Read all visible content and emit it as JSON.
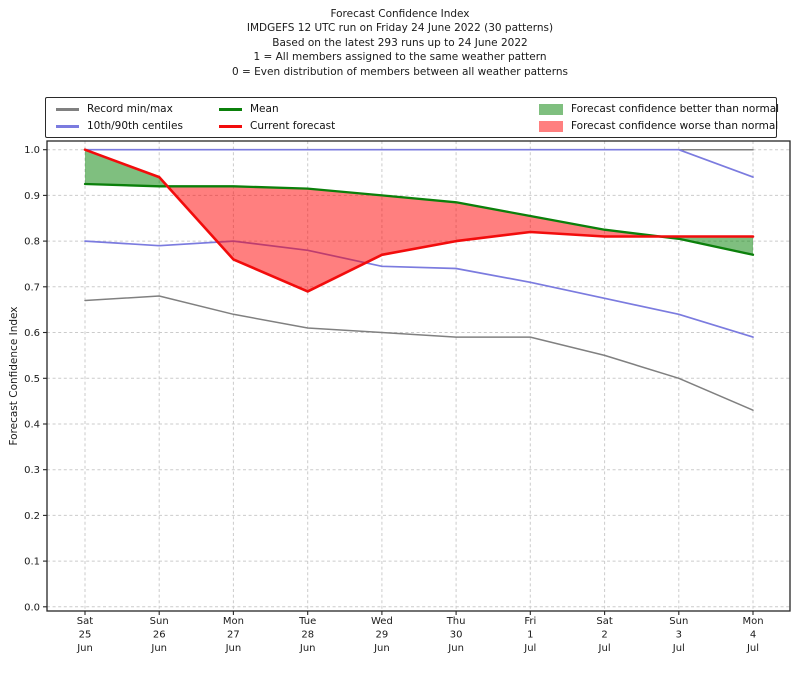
{
  "titles": [
    "Forecast Confidence Index",
    "IMDGEFS 12 UTC run on Friday 24 June 2022 (30 patterns)",
    "Based on the latest 293 runs up to 24 June 2022",
    "1 = All members assigned to the same weather pattern",
    "0 = Even distribution of members between all weather patterns"
  ],
  "ylabel": "Forecast Confidence Index",
  "legend": {
    "items": [
      {
        "label": "Record min/max",
        "type": "line",
        "color": "#808080",
        "opacity": 1
      },
      {
        "label": "10th/90th centiles",
        "type": "line",
        "color": "#7b7bdf",
        "opacity": 1
      },
      {
        "label": "Mean",
        "type": "line",
        "color": "#0b800b",
        "opacity": 1
      },
      {
        "label": "Current forecast",
        "type": "line",
        "color": "#f20c0c",
        "opacity": 1
      },
      {
        "label": "Forecast confidence better than normal",
        "type": "patch",
        "color": "#008000",
        "opacity": 0.5
      },
      {
        "label": "Forecast confidence worse than normal",
        "type": "patch",
        "color": "#ff0000",
        "opacity": 0.5
      }
    ]
  },
  "chart_data": {
    "type": "line",
    "title": "Forecast Confidence Index",
    "ylabel": "Forecast Confidence Index",
    "ylim": [
      0.0,
      1.02
    ],
    "grid": true,
    "legend_position": "top",
    "y_ticks": [
      "0.0",
      "0.1",
      "0.2",
      "0.3",
      "0.4",
      "0.5",
      "0.6",
      "0.7",
      "0.8",
      "0.9",
      "1.0"
    ],
    "x_categories": [
      {
        "dow": "Sat",
        "day": "25",
        "mon": "Jun"
      },
      {
        "dow": "Sun",
        "day": "26",
        "mon": "Jun"
      },
      {
        "dow": "Mon",
        "day": "27",
        "mon": "Jun"
      },
      {
        "dow": "Tue",
        "day": "28",
        "mon": "Jun"
      },
      {
        "dow": "Wed",
        "day": "29",
        "mon": "Jun"
      },
      {
        "dow": "Thu",
        "day": "30",
        "mon": "Jun"
      },
      {
        "dow": "Fri",
        "day": "1",
        "mon": "Jul"
      },
      {
        "dow": "Sat",
        "day": "2",
        "mon": "Jul"
      },
      {
        "dow": "Sun",
        "day": "3",
        "mon": "Jul"
      },
      {
        "dow": "Mon",
        "day": "4",
        "mon": "Jul"
      }
    ],
    "series": [
      {
        "name": "Record max",
        "color": "#808080",
        "line_width": 1.5,
        "z": 1,
        "values": [
          1.0,
          1.0,
          1.0,
          1.0,
          1.0,
          1.0,
          1.0,
          1.0,
          1.0,
          1.0
        ]
      },
      {
        "name": "Record min",
        "color": "#808080",
        "line_width": 1.5,
        "z": 1,
        "values": [
          0.67,
          0.68,
          0.64,
          0.61,
          0.6,
          0.59,
          0.59,
          0.55,
          0.5,
          0.43
        ]
      },
      {
        "name": "90th centile",
        "color": "#7b7bdf",
        "line_width": 1.7,
        "z": 1,
        "values": [
          1.0,
          1.0,
          1.0,
          1.0,
          1.0,
          1.0,
          1.0,
          1.0,
          1.0,
          0.94
        ]
      },
      {
        "name": "10th centile",
        "color": "#7b7bdf",
        "line_width": 1.7,
        "z": 1,
        "values": [
          0.8,
          0.79,
          0.8,
          0.78,
          0.745,
          0.74,
          0.71,
          0.675,
          0.64,
          0.59
        ]
      },
      {
        "name": "Mean",
        "color": "#0b800b",
        "line_width": 2.3,
        "z": 3,
        "values": [
          0.925,
          0.92,
          0.92,
          0.915,
          0.9,
          0.885,
          0.855,
          0.825,
          0.805,
          0.77
        ]
      },
      {
        "name": "Current forecast",
        "color": "#f20c0c",
        "line_width": 2.6,
        "z": 3,
        "values": [
          1.0,
          0.94,
          0.76,
          0.69,
          0.77,
          0.8,
          0.82,
          0.81,
          0.81,
          0.81
        ]
      }
    ],
    "fills": {
      "between": [
        "Mean",
        "Current forecast"
      ],
      "better_color": "#008000",
      "worse_color": "#ff0000",
      "opacity": 0.5,
      "better_label": "Forecast confidence better than normal",
      "worse_label": "Forecast confidence worse than normal"
    }
  }
}
